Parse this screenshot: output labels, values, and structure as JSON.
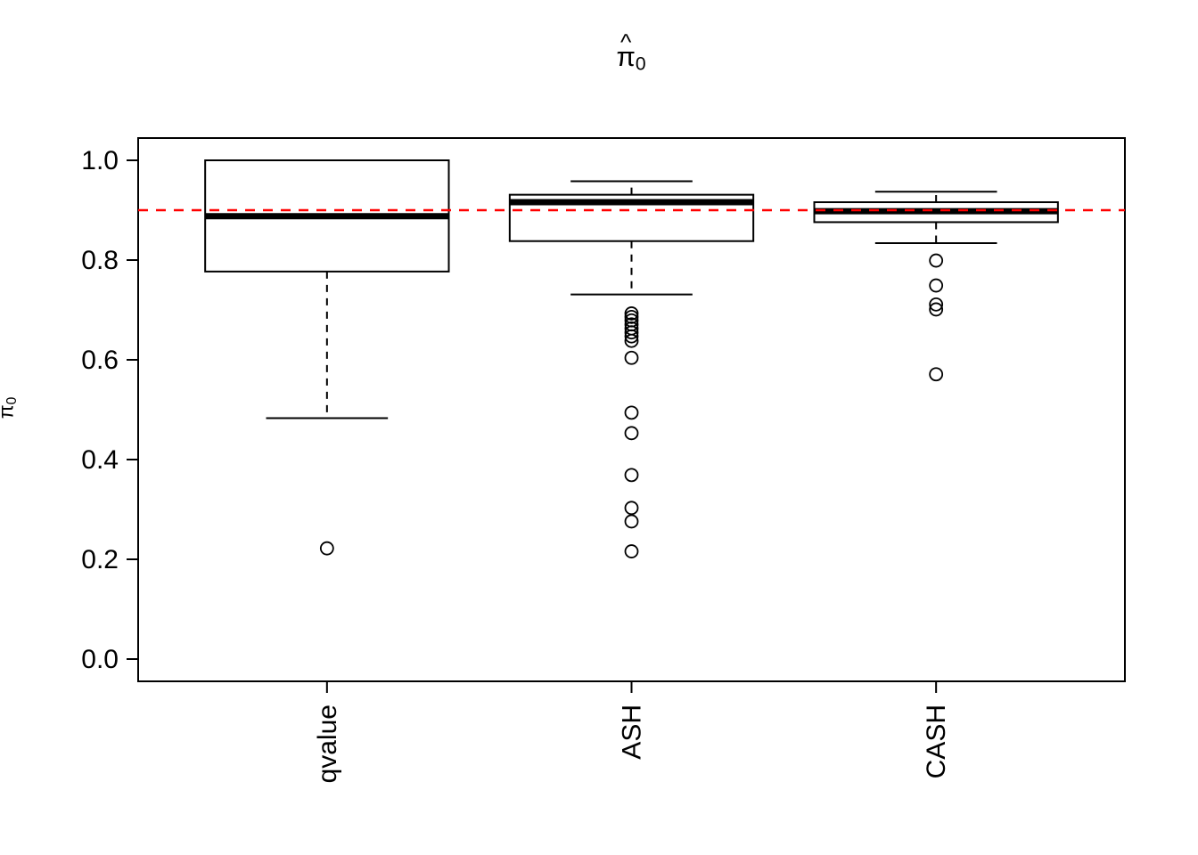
{
  "figure": {
    "title": {
      "hat": "^",
      "symbol": "π",
      "subscript": "0"
    },
    "y_axis_title": {
      "hat": "^",
      "symbol": "π",
      "subscript": "0"
    }
  },
  "chart_data": {
    "type": "boxplot",
    "title": "π̂0",
    "xlabel": "",
    "ylabel": "π̂0",
    "categories": [
      "qvalue",
      "ASH",
      "CASH"
    ],
    "ylim": [
      0.0,
      1.0
    ],
    "yticks": [
      0.0,
      0.2,
      0.4,
      0.6,
      0.8,
      1.0
    ],
    "grid": false,
    "legend": "none",
    "reference_line": {
      "y": 0.9,
      "color": "#FF0000",
      "style": "dashed"
    },
    "series": [
      {
        "name": "qvalue",
        "whisker_low": 0.483,
        "q1": 0.777,
        "median": 0.888,
        "q3": 1.0,
        "whisker_high": 1.0,
        "outliers": [
          0.222
        ]
      },
      {
        "name": "ASH",
        "whisker_low": 0.731,
        "q1": 0.838,
        "median": 0.916,
        "q3": 0.931,
        "whisker_high": 0.958,
        "outliers": [
          0.693,
          0.686,
          0.679,
          0.671,
          0.663,
          0.655,
          0.647,
          0.638,
          0.604,
          0.494,
          0.453,
          0.369,
          0.303,
          0.276,
          0.216
        ]
      },
      {
        "name": "CASH",
        "whisker_low": 0.834,
        "q1": 0.876,
        "median": 0.898,
        "q3": 0.916,
        "whisker_high": 0.937,
        "outliers": [
          0.799,
          0.749,
          0.711,
          0.701,
          0.571
        ]
      }
    ]
  }
}
